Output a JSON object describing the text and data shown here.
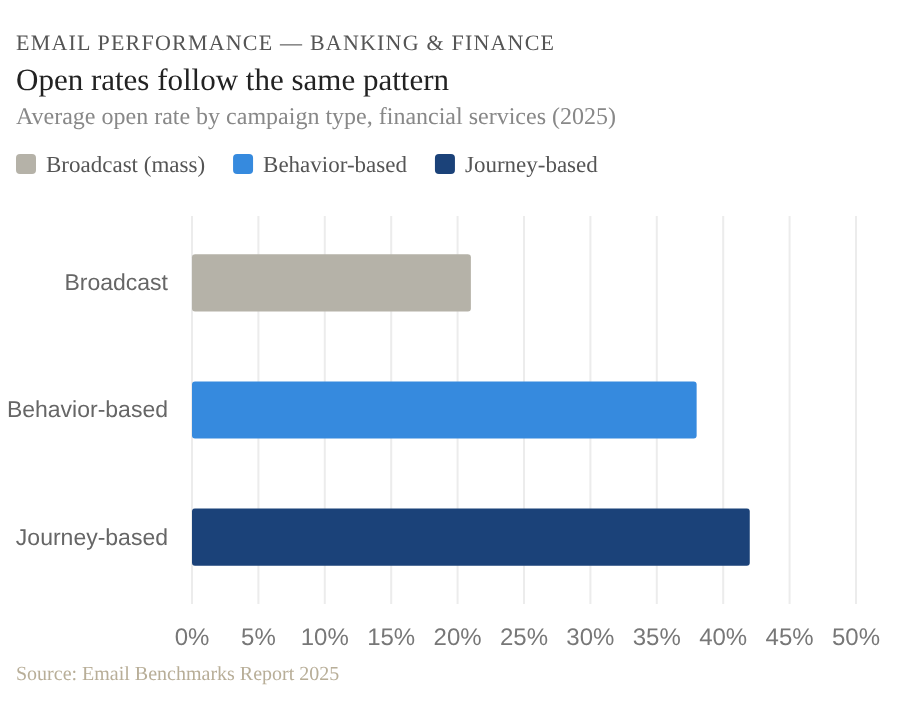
{
  "chart_data": {
    "type": "bar",
    "orientation": "horizontal",
    "title": "Open rates follow the same pattern",
    "subtitle": "Average open rate by campaign type, financial services (2025)",
    "annotations": [
      "EMAIL PERFORMANCE — BANKING & FINANCE",
      "Source: Email Benchmarks Report 2025"
    ],
    "categories": [
      "Broadcast",
      "Behavior-based",
      "Journey-based"
    ],
    "series": [
      {
        "name": "Broadcast (mass)",
        "color": "#b5b2a8",
        "values": [
          21,
          null,
          null
        ]
      },
      {
        "name": "Behavior-based",
        "color": "#368ade",
        "values": [
          null,
          38,
          null
        ]
      },
      {
        "name": "Journey-based",
        "color": "#1b4279",
        "values": [
          null,
          null,
          42
        ]
      }
    ],
    "xlim": [
      0,
      50
    ],
    "xticks": [
      {
        "value": 0,
        "label": "0%"
      },
      {
        "value": 5,
        "label": "5%"
      },
      {
        "value": 10,
        "label": "10%"
      },
      {
        "value": 15,
        "label": "15%"
      },
      {
        "value": 20,
        "label": "20%"
      },
      {
        "value": 25,
        "label": "25%"
      },
      {
        "value": 30,
        "label": "30%"
      },
      {
        "value": 35,
        "label": "35%"
      },
      {
        "value": 40,
        "label": "40%"
      },
      {
        "value": 45,
        "label": "45%"
      },
      {
        "value": 50,
        "label": "50%"
      }
    ],
    "grid": "x",
    "legend": "top left"
  }
}
